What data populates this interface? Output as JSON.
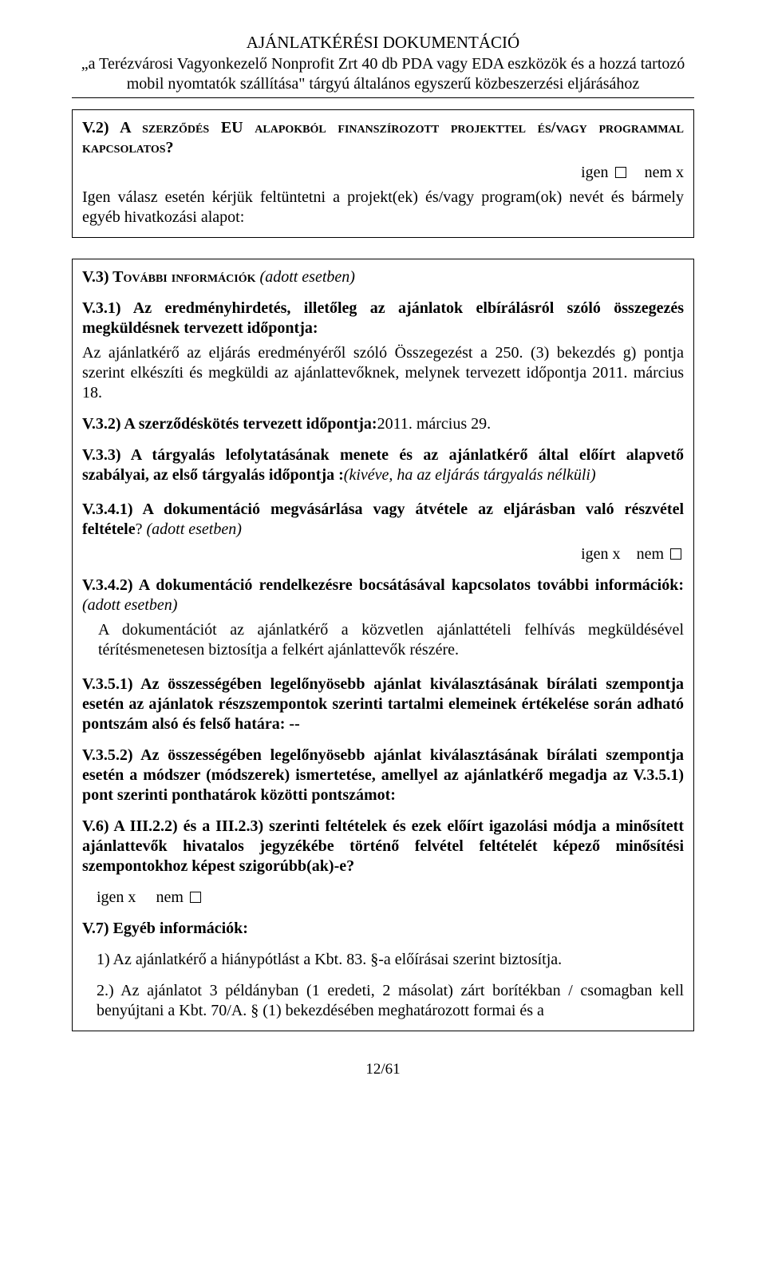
{
  "header": {
    "title": "AJÁNLATKÉRÉSI DOKUMENTÁCIÓ",
    "subtitle": "„a Terézvárosi Vagyonkezelő Nonprofit Zrt 40 db PDA vagy EDA eszközök és a hozzá tartozó mobil nyomtatók szállítása\" tárgyú általános egyszerű közbeszerzési eljárásához"
  },
  "box1": {
    "v2_heading_a": "V.2) A ",
    "v2_heading_b_smallcaps": "szerződés EU alapokból finanszírozott projekttel és/vagy programmal kapcsolatos?",
    "yn_igen": "igen",
    "yn_nem": "nem x",
    "v2_text": "Igen válasz esetén kérjük feltüntetni a projekt(ek) és/vagy program(ok) nevét és bármely egyéb hivatkozási alapot:"
  },
  "box2": {
    "v3_heading_a": "V.3) T",
    "v3_heading_b_smallcaps": "ovábbi információk",
    "v3_heading_c_italic": " (adott esetben)",
    "v31_bold": "V.3.1) Az eredményhirdetés, illetőleg az ajánlatok elbírálásról szóló összegezés megküldésnek tervezett időpontja:",
    "v31_text": "Az ajánlatkérő az eljárás eredményéről szóló Összegezést a 250. (3) bekezdés g) pontja szerint elkészíti és megküldi az ajánlattevőknek, melynek tervezett időpontja 2011. március 18.",
    "v32_bold": "V.3.2) A szerződéskötés tervezett időpontja:",
    "v32_text": "2011. március 29.",
    "v33_bold": "V.3.3) A tárgyalás lefolytatásának menete és az ajánlatkérő által előírt alapvető szabályai, az első tárgyalás időpontja :",
    "v33_italic": "(kivéve, ha az eljárás tárgyalás nélküli)",
    "v341_bold": "V.3.4.1) A dokumentáció megvásárlása vagy átvétele az eljárásban való részvétel feltétele",
    "v341_q": "? ",
    "v341_italic": "(adott esetben)",
    "v341_yn_igen": "igen x",
    "v341_yn_nem": "nem",
    "v342_bold": "V.3.4.2) A dokumentáció rendelkezésre bocsátásával kapcsolatos további információk:",
    "v342_italic": " (adott esetben)",
    "v342_text": "A dokumentációt az ajánlatkérő a közvetlen ajánlattételi felhívás megküldésével térítésmenetesen biztosítja a felkért ajánlattevők részére.",
    "v351_bold": "V.3.5.1) Az összességében legelőnyösebb ajánlat kiválasztásának bírálati szempontja esetén az ajánlatok részszempontok szerinti tartalmi elemeinek értékelése során adható pontszám alsó és felső határa: --",
    "v352_bold": "V.3.5.2) Az összességében legelőnyösebb ajánlat kiválasztásának bírálati szempontja esetén a módszer (módszerek) ismertetése, amellyel az ajánlatkérő megadja az V.3.5.1) pont szerinti ponthatárok közötti pontszámot:",
    "v6_bold": "V.6) A III.2.2) és a III.2.3) szerinti feltételek és ezek előírt igazolási módja a minősített ajánlattevők hivatalos jegyzékébe történő felvétel feltételét képező minősítési szempontokhoz képest szigorúbb(ak)-e?",
    "v6_yn_igen": "igen x",
    "v6_yn_nem": "nem",
    "v7_bold": "V.7) Egyéb információk:",
    "v7_1": "1) Az ajánlatkérő a hiánypótlást a Kbt. 83. §-a előírásai szerint biztosítja.",
    "v7_2": "2.) Az ajánlatot 3 példányban (1 eredeti, 2 másolat) zárt borítékban / csomagban kell benyújtani a Kbt. 70/A. § (1) bekezdésében meghatározott formai és a"
  },
  "footer": {
    "page": "12/61"
  }
}
